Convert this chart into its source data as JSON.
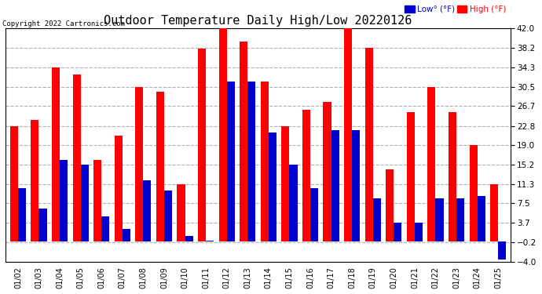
{
  "title": "Outdoor Temperature Daily High/Low 20220126",
  "copyright": "Copyright 2022 Cartronics.com",
  "dates": [
    "01/02",
    "01/03",
    "01/04",
    "01/05",
    "01/06",
    "01/07",
    "01/08",
    "01/09",
    "01/10",
    "01/11",
    "01/12",
    "01/13",
    "01/14",
    "01/15",
    "01/16",
    "01/17",
    "01/18",
    "01/19",
    "01/20",
    "01/21",
    "01/22",
    "01/23",
    "01/24",
    "01/25"
  ],
  "highs": [
    22.8,
    24.0,
    34.3,
    33.0,
    16.0,
    20.8,
    30.5,
    29.5,
    11.3,
    38.0,
    42.0,
    39.5,
    31.5,
    22.8,
    26.0,
    27.5,
    42.0,
    38.2,
    14.2,
    25.5,
    30.5,
    25.5,
    19.0,
    11.3
  ],
  "lows": [
    10.5,
    6.5,
    16.0,
    15.2,
    5.0,
    2.5,
    12.0,
    10.0,
    1.0,
    0.2,
    31.5,
    31.5,
    21.5,
    15.2,
    10.5,
    22.0,
    22.0,
    8.5,
    3.7,
    3.7,
    8.5,
    8.5,
    9.0,
    -3.5
  ],
  "ylim": [
    -4.0,
    42.0
  ],
  "yticks": [
    -4.0,
    -0.2,
    3.7,
    7.5,
    11.3,
    15.2,
    19.0,
    22.8,
    26.7,
    30.5,
    34.3,
    38.2,
    42.0
  ],
  "high_color": "#ff0000",
  "low_color": "#0000cc",
  "bar_width": 0.38,
  "grid_color": "#b0b0b0",
  "bg_color": "#ffffff",
  "title_fontsize": 11,
  "legend_colors": [
    "#0000cc",
    "#ff0000"
  ]
}
